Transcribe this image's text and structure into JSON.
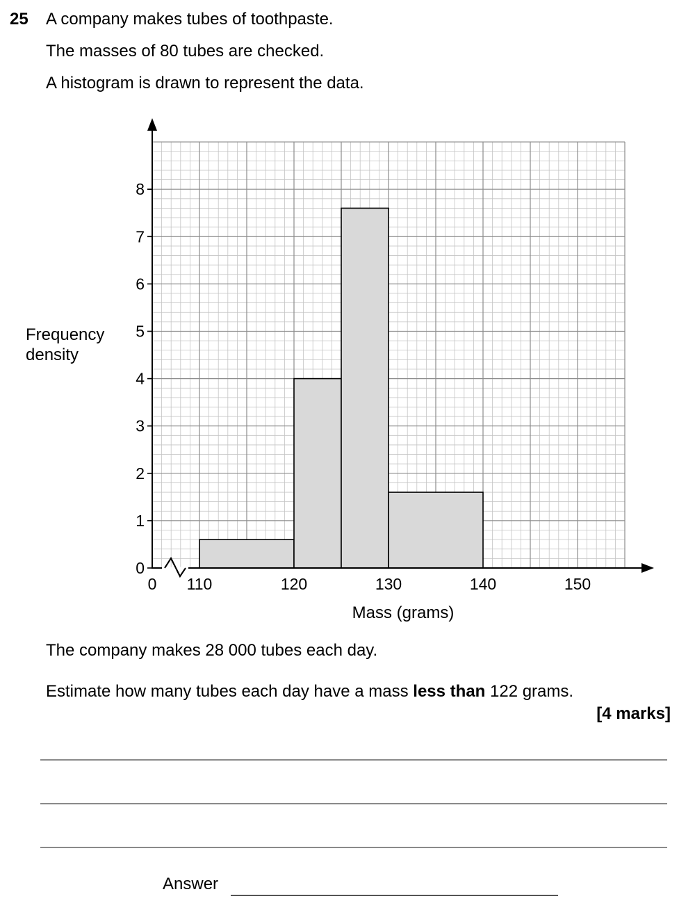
{
  "question": {
    "number": "25",
    "intro_lines": [
      "A company makes tubes of toothpaste.",
      "The masses of 80 tubes are checked.",
      "A histogram is drawn to represent the data."
    ],
    "production": "The company makes 28 000 tubes each day.",
    "task_before": "Estimate how many tubes each day have a mass ",
    "task_bold": "less than",
    "task_after": " 122 grams.",
    "marks": "[4 marks]",
    "answer_label": "Answer"
  },
  "chart_data": {
    "type": "bar",
    "subtype": "histogram",
    "title": "",
    "xlabel": "Mass (grams)",
    "ylabel_lines": [
      "Frequency",
      "density"
    ],
    "x_origin_label": "0",
    "x_axis_break": true,
    "xlim": [
      105,
      160
    ],
    "ylim": [
      0,
      9
    ],
    "x_ticks": [
      110,
      120,
      130,
      140,
      150
    ],
    "y_ticks": [
      0,
      1,
      2,
      3,
      4,
      5,
      6,
      7,
      8
    ],
    "grid": true,
    "bins": [
      {
        "from": 110,
        "to": 120,
        "frequency_density": 0.6
      },
      {
        "from": 120,
        "to": 125,
        "frequency_density": 4
      },
      {
        "from": 125,
        "to": 130,
        "frequency_density": 7.6
      },
      {
        "from": 130,
        "to": 140,
        "frequency_density": 1.6
      }
    ],
    "bar_color": "#d9d9d9"
  }
}
